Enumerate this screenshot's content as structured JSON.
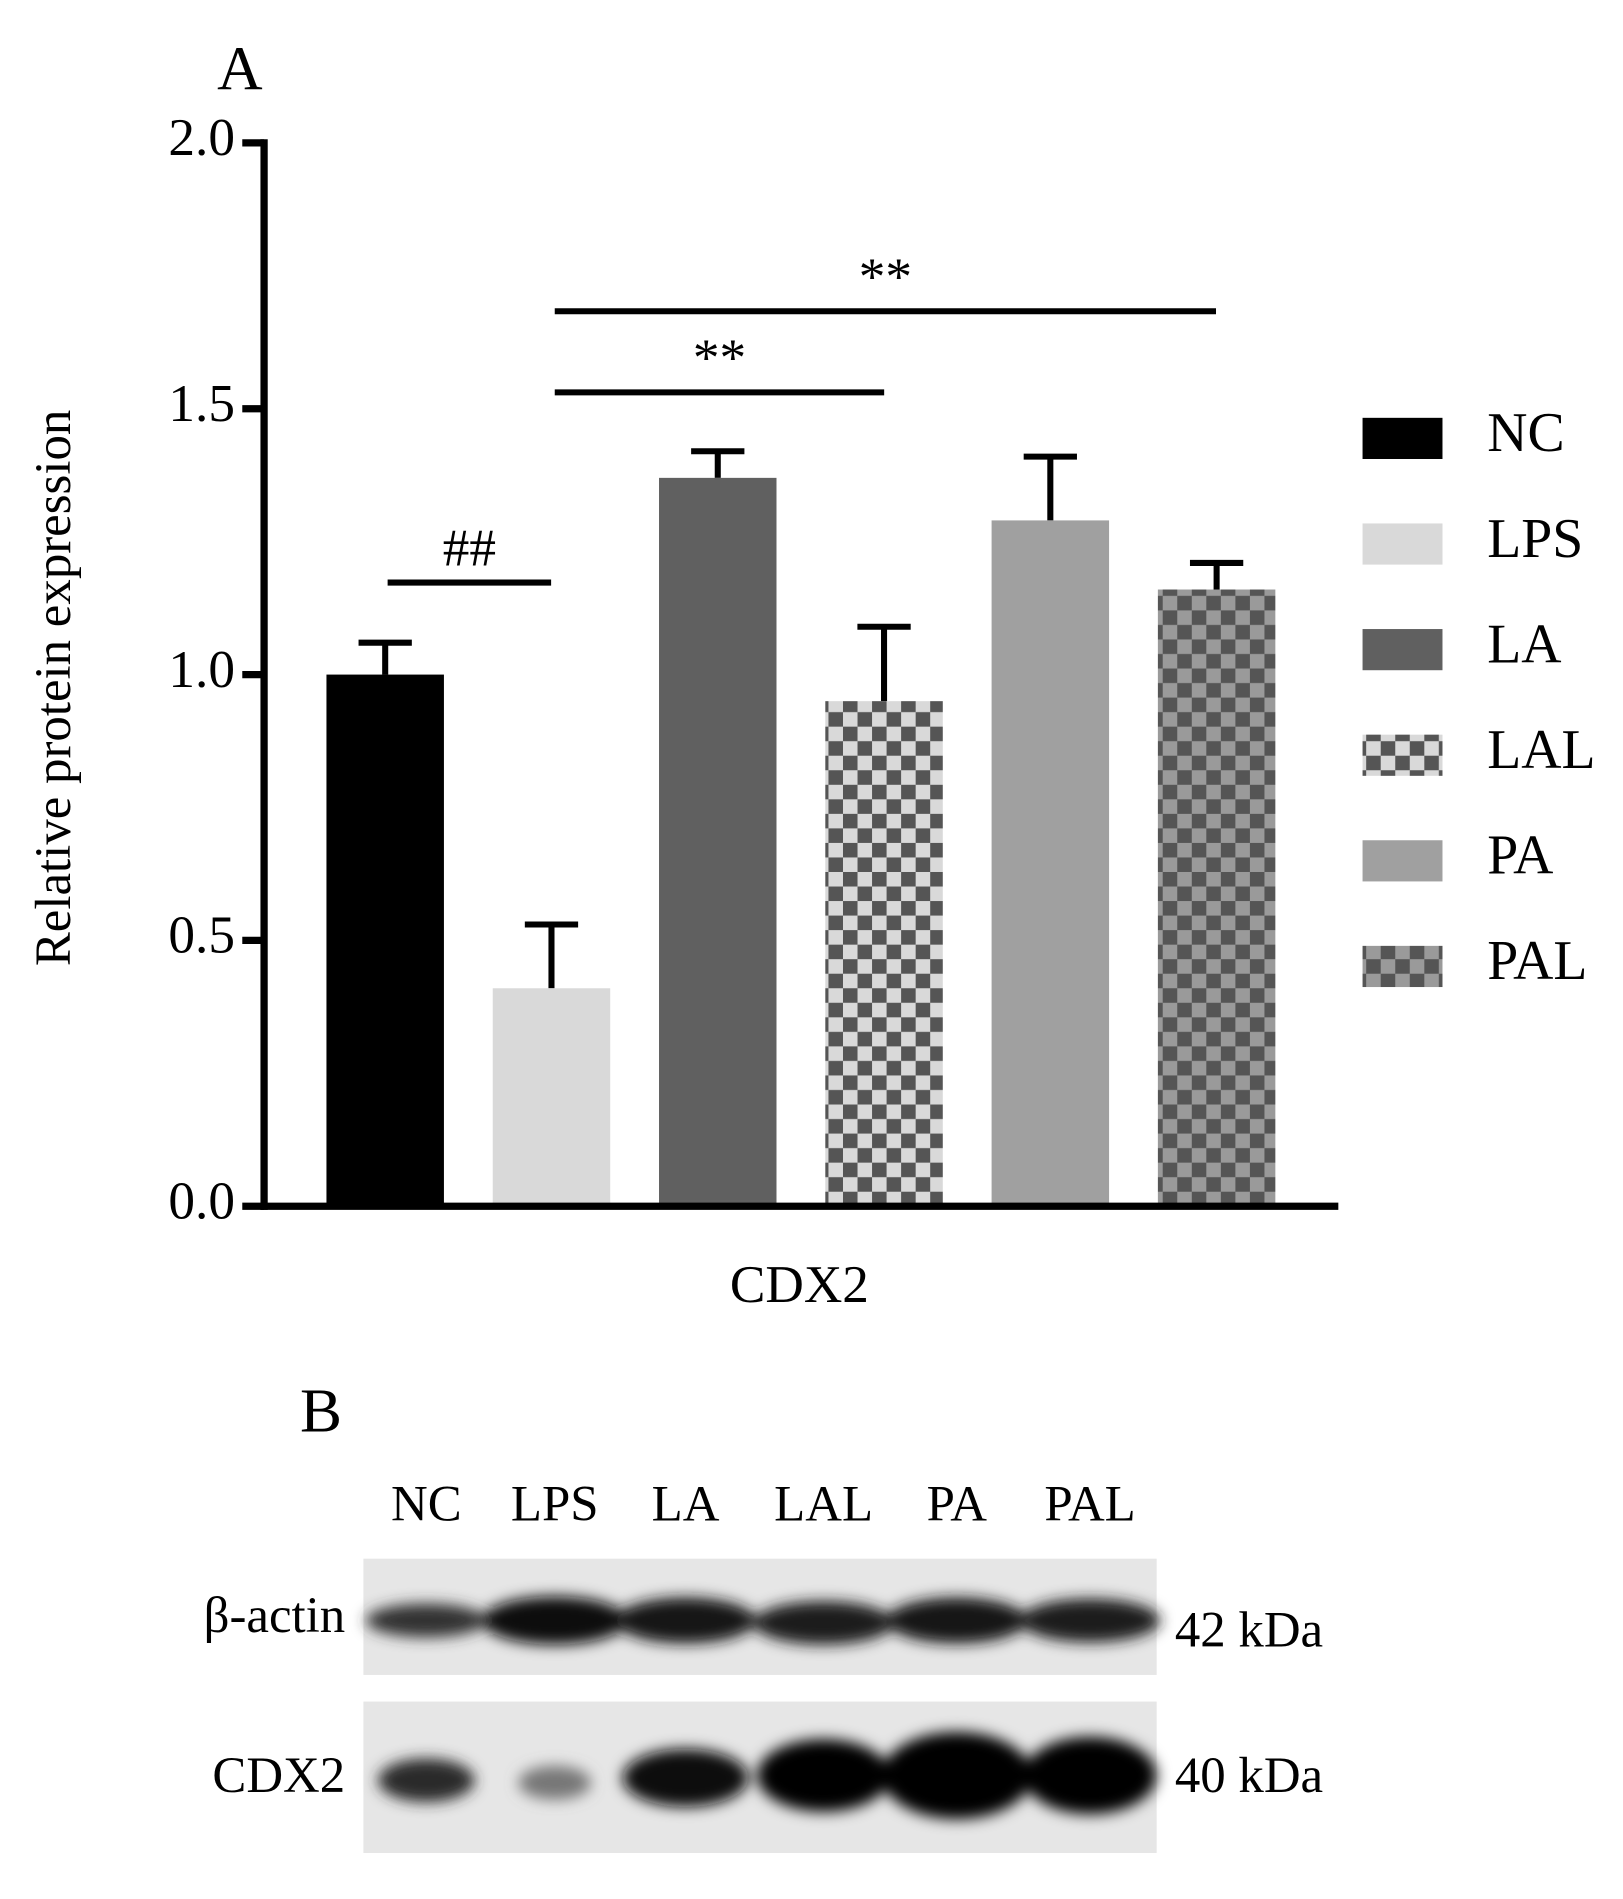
{
  "panel_a": {
    "label": "A"
  },
  "chart_data": {
    "type": "bar",
    "ylabel": "Relative protein expression",
    "categories": [
      "CDX2"
    ],
    "ylim": [
      0,
      2
    ],
    "yticks": [
      {
        "value": 0,
        "label": "0.0"
      },
      {
        "value": 0.5,
        "label": "0.5"
      },
      {
        "value": 1,
        "label": "1.0"
      },
      {
        "value": 1.5,
        "label": "1.5"
      },
      {
        "value": 2,
        "label": "2.0"
      }
    ],
    "legend": "right",
    "series": [
      {
        "name": "NC",
        "color": "#000000",
        "values": [
          1.0
        ],
        "errors": [
          0.06
        ]
      },
      {
        "name": "LPS",
        "color": "#d9d9d9",
        "values": [
          0.41
        ],
        "errors": [
          0.12
        ]
      },
      {
        "name": "LA",
        "color": "#606060",
        "values": [
          1.37
        ],
        "errors": [
          0.05
        ]
      },
      {
        "name": "LAL",
        "color": "#d9d9d9",
        "color2": "#555555",
        "pattern": "checker",
        "values": [
          0.95
        ],
        "errors": [
          0.14
        ]
      },
      {
        "name": "PA",
        "color": "#a0a0a0",
        "values": [
          1.29
        ],
        "errors": [
          0.12
        ]
      },
      {
        "name": "PAL",
        "color": "#9a9a9a",
        "color2": "#555555",
        "pattern": "checker",
        "values": [
          1.16
        ],
        "errors": [
          0.05
        ]
      }
    ],
    "annotations": [
      {
        "text": "##"
      },
      {
        "text": "**"
      },
      {
        "text": "**"
      }
    ]
  },
  "panel_b": {
    "label": "B",
    "lanes": [
      "NC",
      "LPS",
      "LA",
      "LAL",
      "PA",
      "PAL"
    ],
    "rows": [
      {
        "label": "β-actin",
        "size": "42 kDa"
      },
      {
        "label": "CDX2",
        "size": "40 kDa"
      }
    ]
  }
}
